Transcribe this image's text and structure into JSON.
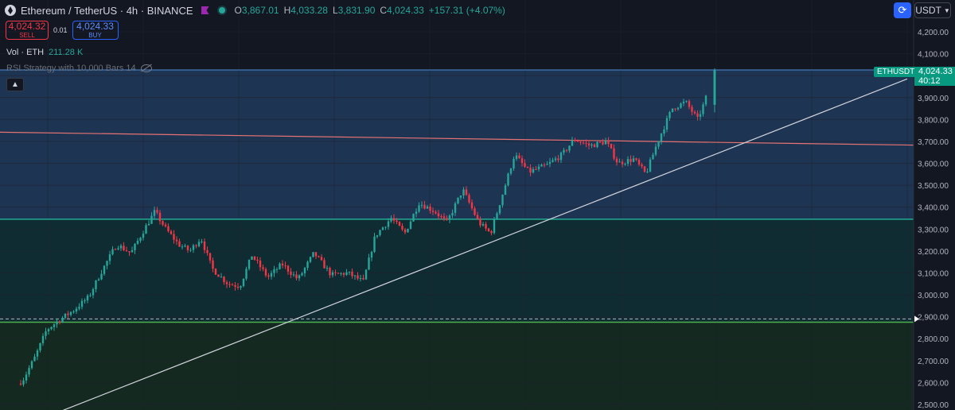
{
  "header": {
    "title": "Ethereum / TetherUS · 4h · BINANCE",
    "ohlc": {
      "o_label": "O",
      "o": "3,867.01",
      "h_label": "H",
      "h": "4,033.28",
      "l_label": "L",
      "l": "3,831.90",
      "c_label": "C",
      "c": "4,024.33",
      "change": "+157.31 (+4.07%)"
    }
  },
  "trade": {
    "sell_price": "4,024.32",
    "sell_label": "SELL",
    "qty": "0.01",
    "buy_price": "4,024.33",
    "buy_label": "BUY"
  },
  "volume": {
    "label": "Vol · ETH",
    "value": "211.28 K"
  },
  "study": {
    "label": "RSI Strategy with 10,000 Bars 14"
  },
  "toolbar": {
    "currency": "USDT",
    "currency_icon": "chevron-down-icon",
    "auto_scale_icon": "auto-scale-icon"
  },
  "price_label": {
    "symbol": "ETHUSDT",
    "price": "4,024.33",
    "countdown": "40:12"
  },
  "colors": {
    "background": "#131722",
    "up": "#26a69a",
    "down": "#f23645",
    "zone_top": "#1e3453",
    "zone_mid": "#102c33",
    "zone_bottom": "#14291f",
    "level_teal": "#22ab94",
    "level_green": "#4caf50",
    "resistance": "#e57373",
    "trendline": "#d1d4dc",
    "grid": "#1e2230"
  },
  "chart_data": {
    "type": "candlestick",
    "symbol": "ETHUSDT",
    "interval": "4h",
    "exchange": "BINANCE",
    "y_axis": {
      "ticks": [
        4200,
        4100,
        4000,
        3900,
        3800,
        3700,
        3600,
        3500,
        3400,
        3300,
        3200,
        3100,
        3000,
        2900,
        2800,
        2700,
        2600,
        2500
      ],
      "tick_labels": [
        "4,200.00",
        "4,100.00",
        "4,000.00",
        "3,900.00",
        "3,800.00",
        "3,700.00",
        "3,600.00",
        "3,500.00",
        "3,400.00",
        "3,300.00",
        "3,200.00",
        "3,100.00",
        "3,000.00",
        "2,900.00",
        "2,800.00",
        "2,700.00",
        "2,600.00",
        "2,500.00"
      ],
      "range": [
        2465,
        4260
      ]
    },
    "zones": [
      {
        "name": "upper-zone",
        "from": 3345,
        "to": 4026
      },
      {
        "name": "middle-zone",
        "from": 2875,
        "to": 3345
      },
      {
        "name": "lower-zone",
        "from": 2460,
        "to": 2875
      }
    ],
    "levels": [
      {
        "name": "teal-level",
        "price": 3345
      },
      {
        "name": "green-level",
        "price": 2875
      },
      {
        "name": "dashed-level",
        "price": 2890
      },
      {
        "name": "current-price-line",
        "price": 4026
      }
    ],
    "trendlines": [
      {
        "name": "resistance-line",
        "from": [
          0,
          3742
        ],
        "to": [
          1148,
          3683
        ]
      },
      {
        "name": "support-trendline",
        "from": [
          70,
          2460
        ],
        "to": [
          1140,
          3985
        ]
      }
    ],
    "anchors": [
      [
        0,
        2470
      ],
      [
        6,
        2470
      ],
      [
        20,
        2580
      ],
      [
        32,
        2610
      ],
      [
        48,
        2720
      ],
      [
        62,
        2840
      ],
      [
        76,
        2880
      ],
      [
        96,
        2930
      ],
      [
        115,
        2990
      ],
      [
        130,
        3100
      ],
      [
        150,
        3230
      ],
      [
        168,
        3190
      ],
      [
        185,
        3300
      ],
      [
        198,
        3380
      ],
      [
        212,
        3300
      ],
      [
        228,
        3230
      ],
      [
        242,
        3200
      ],
      [
        256,
        3260
      ],
      [
        270,
        3120
      ],
      [
        290,
        3050
      ],
      [
        305,
        3040
      ],
      [
        320,
        3180
      ],
      [
        340,
        3080
      ],
      [
        358,
        3140
      ],
      [
        378,
        3070
      ],
      [
        398,
        3190
      ],
      [
        420,
        3090
      ],
      [
        440,
        3100
      ],
      [
        460,
        3060
      ],
      [
        475,
        3270
      ],
      [
        495,
        3350
      ],
      [
        512,
        3280
      ],
      [
        530,
        3420
      ],
      [
        550,
        3380
      ],
      [
        565,
        3330
      ],
      [
        585,
        3480
      ],
      [
        605,
        3330
      ],
      [
        620,
        3280
      ],
      [
        635,
        3460
      ],
      [
        650,
        3640
      ],
      [
        668,
        3560
      ],
      [
        690,
        3590
      ],
      [
        710,
        3640
      ],
      [
        725,
        3710
      ],
      [
        745,
        3680
      ],
      [
        765,
        3700
      ],
      [
        780,
        3600
      ],
      [
        800,
        3620
      ],
      [
        815,
        3550
      ],
      [
        830,
        3700
      ],
      [
        848,
        3850
      ],
      [
        865,
        3880
      ],
      [
        880,
        3800
      ],
      [
        890,
        3890
      ],
      [
        898,
        4026
      ]
    ],
    "candle_spacing": 3.5,
    "last": {
      "open": 3867.01,
      "high": 4033.28,
      "low": 3831.9,
      "close": 4024.33
    }
  }
}
